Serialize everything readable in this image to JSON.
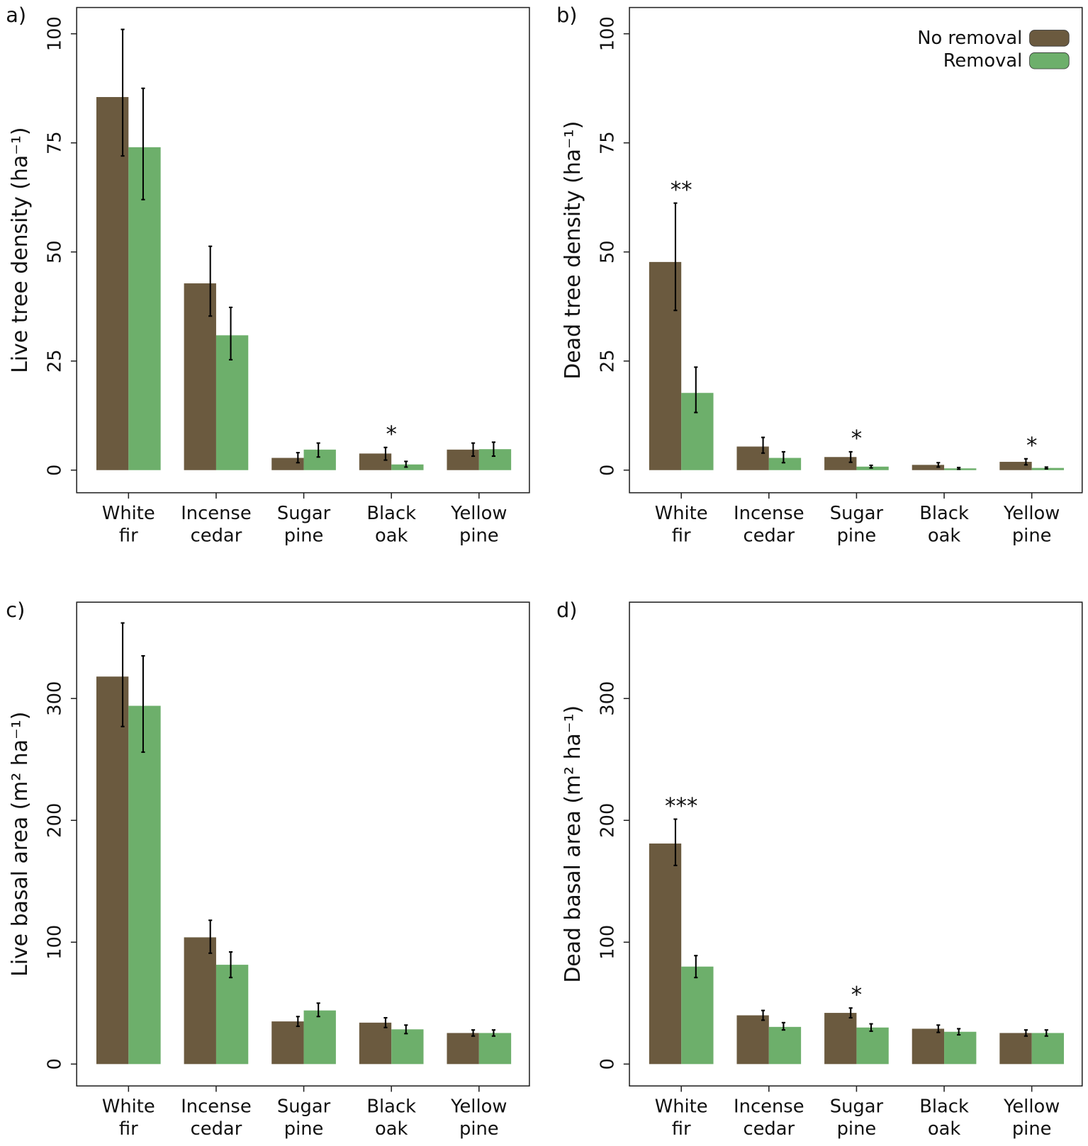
{
  "colors": {
    "no_removal": "#6b5a3f",
    "removal": "#6daf6b",
    "error": "#000000"
  },
  "legend": {
    "no_removal": "No removal",
    "removal": "Removal"
  },
  "chart_data": [
    {
      "type": "bar",
      "panel": "a)",
      "ylabel": "Live tree density (ha⁻¹)",
      "ylim": [
        0,
        100
      ],
      "yticks": [
        0,
        25,
        50,
        75,
        100
      ],
      "categories": [
        [
          "White",
          "fir"
        ],
        [
          "Incense",
          "cedar"
        ],
        [
          "Sugar",
          "pine"
        ],
        [
          "Black",
          "oak"
        ],
        [
          "Yellow",
          "pine"
        ]
      ],
      "series": [
        {
          "name": "No removal",
          "values": [
            85.5,
            42.8,
            2.8,
            3.8,
            4.7
          ],
          "err_low": [
            72,
            35.3,
            1.7,
            2.3,
            3.2
          ],
          "err_high": [
            101,
            51.3,
            4.0,
            5.2,
            6.2
          ]
        },
        {
          "name": "Removal",
          "values": [
            74,
            30.9,
            4.7,
            1.3,
            4.8
          ],
          "err_low": [
            62,
            25.3,
            3.0,
            0.7,
            3.2
          ],
          "err_high": [
            87.5,
            37.3,
            6.2,
            2.0,
            6.4
          ]
        }
      ],
      "significance": [
        "",
        "",
        "",
        "*",
        ""
      ]
    },
    {
      "type": "bar",
      "panel": "b)",
      "ylabel": "Dead tree density (ha⁻¹)",
      "ylim": [
        0,
        100
      ],
      "yticks": [
        0,
        25,
        50,
        75,
        100
      ],
      "legend_position": "top-right",
      "categories": [
        [
          "White",
          "fir"
        ],
        [
          "Incense",
          "cedar"
        ],
        [
          "Sugar",
          "pine"
        ],
        [
          "Black",
          "oak"
        ],
        [
          "Yellow",
          "pine"
        ]
      ],
      "series": [
        {
          "name": "No removal",
          "values": [
            47.7,
            5.4,
            3.0,
            1.2,
            1.9
          ],
          "err_low": [
            36.6,
            3.9,
            1.8,
            0.7,
            1.2
          ],
          "err_high": [
            61.2,
            7.5,
            4.2,
            1.7,
            2.6
          ]
        },
        {
          "name": "Removal",
          "values": [
            17.7,
            2.8,
            0.8,
            0.4,
            0.5
          ],
          "err_low": [
            13.2,
            1.7,
            0.5,
            0.2,
            0.3
          ],
          "err_high": [
            23.6,
            4.2,
            1.1,
            0.6,
            0.7
          ]
        }
      ],
      "significance": [
        "**",
        "",
        "*",
        "",
        "*"
      ]
    },
    {
      "type": "bar",
      "panel": "c)",
      "ylabel": "Live basal area (m² ha⁻¹)",
      "ylim": [
        0,
        380
      ],
      "yticks": [
        0,
        100,
        200,
        300
      ],
      "categories": [
        [
          "White",
          "fir"
        ],
        [
          "Incense",
          "cedar"
        ],
        [
          "Sugar",
          "pine"
        ],
        [
          "Black",
          "oak"
        ],
        [
          "Yellow",
          "pine"
        ]
      ],
      "series": [
        {
          "name": "No removal",
          "values": [
            318,
            104,
            35,
            34,
            25.5
          ],
          "err_low": [
            277,
            91,
            31,
            30,
            23
          ],
          "err_high": [
            362,
            118,
            39,
            38,
            28
          ]
        },
        {
          "name": "Removal",
          "values": [
            294,
            81.5,
            44,
            28.5,
            25.5
          ],
          "err_low": [
            256,
            71,
            39,
            25,
            23
          ],
          "err_high": [
            335,
            92,
            50,
            32,
            28
          ]
        }
      ],
      "significance": [
        "",
        "",
        "",
        "",
        ""
      ]
    },
    {
      "type": "bar",
      "panel": "d)",
      "ylabel": "Dead basal area (m² ha⁻¹)",
      "ylim": [
        0,
        380
      ],
      "yticks": [
        0,
        100,
        200,
        300
      ],
      "categories": [
        [
          "White",
          "fir"
        ],
        [
          "Incense",
          "cedar"
        ],
        [
          "Sugar",
          "pine"
        ],
        [
          "Black",
          "oak"
        ],
        [
          "Yellow",
          "pine"
        ]
      ],
      "series": [
        {
          "name": "No removal",
          "values": [
            181,
            40,
            42,
            29,
            25.5
          ],
          "err_low": [
            163,
            36,
            38,
            26,
            23
          ],
          "err_high": [
            201,
            44,
            46,
            32,
            28
          ]
        },
        {
          "name": "Removal",
          "values": [
            80,
            30.5,
            30,
            26.5,
            25.5
          ],
          "err_low": [
            71,
            28,
            27,
            24,
            23
          ],
          "err_high": [
            89,
            34,
            33,
            29,
            28
          ]
        }
      ],
      "significance": [
        "***",
        "",
        "*",
        "",
        ""
      ]
    }
  ]
}
